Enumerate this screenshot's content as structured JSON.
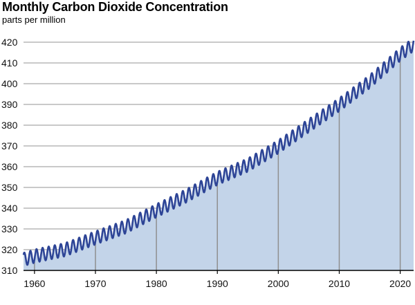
{
  "colors": {
    "area": "#c3d4e9",
    "line": "#2d4496",
    "grid": "#b7b7b7",
    "year_marker": "#8f8f8f",
    "axis": "#000000"
  },
  "chart_data": {
    "type": "line",
    "title": "Monthly Carbon Dioxide Concentration",
    "subtitle": "parts per million",
    "xlabel": "",
    "ylabel": "",
    "xlim": [
      1958.2,
      2022.2
    ],
    "ylim": [
      310,
      420
    ],
    "x_ticks": [
      1960,
      1970,
      1980,
      1990,
      2000,
      2010,
      2020
    ],
    "y_ticks": [
      310,
      320,
      330,
      340,
      350,
      360,
      370,
      380,
      390,
      400,
      410,
      420
    ],
    "area_fill": true,
    "grid": "horizontal",
    "legend": "none",
    "seasonal_amplitude_ppm": 3.2,
    "x": [
      1958.2,
      1960,
      1965,
      1970,
      1975,
      1980,
      1985,
      1990,
      1995,
      2000,
      2005,
      2010,
      2015,
      2020,
      2022
    ],
    "y": [
      315.3,
      316.9,
      320.0,
      325.7,
      331.1,
      338.8,
      346.1,
      354.4,
      360.8,
      369.6,
      379.8,
      389.9,
      401.0,
      414.2,
      418.5
    ]
  }
}
